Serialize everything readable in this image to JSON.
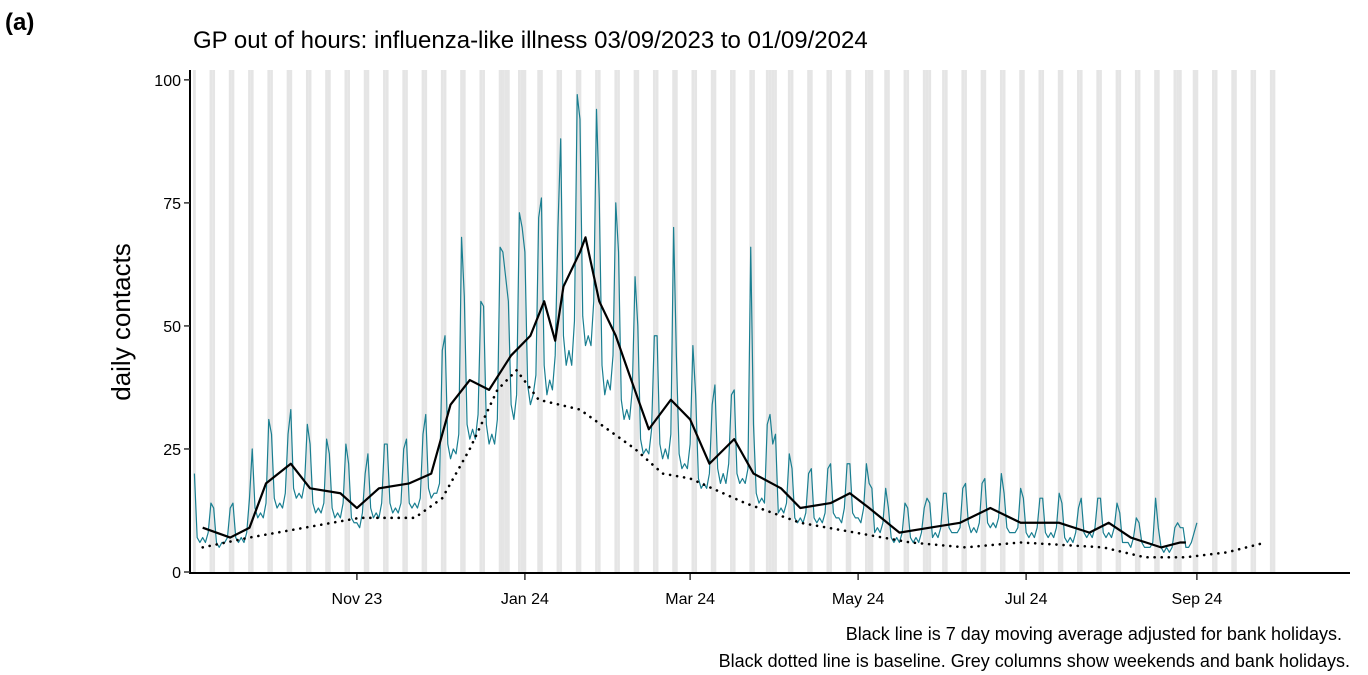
{
  "panel_label": "(a)",
  "chart_data": {
    "type": "line",
    "title": "GP out of hours: influenza-like illness 03/09/2023 to 01/09/2024",
    "y_label": "daily contacts",
    "notes": [
      "Black line is 7 day moving average adjusted for bank holidays.",
      "Black dotted line is baseline. Grey columns show weekends and bank holidays."
    ],
    "xlim": [
      -1.6,
      419.6
    ],
    "xticks": [
      {
        "value": 59,
        "label": "Nov 23"
      },
      {
        "value": 120,
        "label": "Jan 24"
      },
      {
        "value": 180,
        "label": "Mar 24"
      },
      {
        "value": 241,
        "label": "May 24"
      },
      {
        "value": 302,
        "label": "Jul 24"
      },
      {
        "value": 364,
        "label": "Sep 24"
      }
    ],
    "ylim": [
      0,
      102
    ],
    "yticks": [
      0,
      25,
      50,
      75,
      100
    ],
    "shaded_columns": {
      "color": "#e5e5e5",
      "x": [
        0,
        6,
        7,
        13,
        14,
        20,
        21,
        27,
        28,
        34,
        35,
        41,
        42,
        48,
        49,
        55,
        56,
        62,
        63,
        69,
        70,
        76,
        77,
        83,
        84,
        90,
        91,
        97,
        98,
        104,
        105,
        111,
        112,
        113,
        114,
        118,
        119,
        120,
        125,
        126,
        132,
        133,
        139,
        140,
        146,
        147,
        153,
        154,
        160,
        161,
        167,
        168,
        174,
        175,
        181,
        182,
        188,
        189,
        195,
        196,
        202,
        203,
        208,
        209,
        210,
        211,
        216,
        217,
        223,
        224,
        230,
        231,
        237,
        238,
        244,
        245,
        246,
        251,
        252,
        258,
        259,
        265,
        266,
        267,
        272,
        273,
        279,
        280,
        286,
        287,
        293,
        294,
        300,
        301,
        307,
        308,
        314,
        315,
        321,
        322,
        328,
        329,
        335,
        336,
        342,
        343,
        349,
        350,
        356,
        357,
        358,
        363,
        364,
        370,
        371,
        377,
        378,
        384,
        385,
        391,
        392
      ]
    },
    "series": [
      {
        "color": "#1a7f91",
        "width": 1.2,
        "linestyle": "solid",
        "x": [
          0,
          1,
          2,
          3,
          4,
          5,
          6,
          7,
          8,
          9,
          10,
          11,
          12,
          13,
          14,
          15,
          16,
          17,
          18,
          19,
          20,
          21,
          22,
          23,
          24,
          25,
          26,
          27,
          28,
          29,
          30,
          31,
          32,
          33,
          34,
          35,
          36,
          37,
          38,
          39,
          40,
          41,
          42,
          43,
          44,
          45,
          46,
          47,
          48,
          49,
          50,
          51,
          52,
          53,
          54,
          55,
          56,
          57,
          58,
          59,
          60,
          61,
          62,
          63,
          64,
          65,
          66,
          67,
          68,
          69,
          70,
          71,
          72,
          73,
          74,
          75,
          76,
          77,
          78,
          79,
          80,
          81,
          82,
          83,
          84,
          85,
          86,
          87,
          88,
          89,
          90,
          91,
          92,
          93,
          94,
          95,
          96,
          97,
          98,
          99,
          100,
          101,
          102,
          103,
          104,
          105,
          106,
          107,
          108,
          109,
          110,
          111,
          112,
          113,
          114,
          115,
          116,
          117,
          118,
          119,
          120,
          121,
          122,
          123,
          124,
          125,
          126,
          127,
          128,
          129,
          130,
          131,
          132,
          133,
          134,
          135,
          136,
          137,
          138,
          139,
          140,
          141,
          142,
          143,
          144,
          145,
          146,
          147,
          148,
          149,
          150,
          151,
          152,
          153,
          154,
          155,
          156,
          157,
          158,
          159,
          160,
          161,
          162,
          163,
          164,
          165,
          166,
          167,
          168,
          169,
          170,
          171,
          172,
          173,
          174,
          175,
          176,
          177,
          178,
          179,
          180,
          181,
          182,
          183,
          184,
          185,
          186,
          187,
          188,
          189,
          190,
          191,
          192,
          193,
          194,
          195,
          196,
          197,
          198,
          199,
          200,
          201,
          202,
          203,
          204,
          205,
          206,
          207,
          208,
          209,
          210,
          211,
          212,
          213,
          214,
          215,
          216,
          217,
          218,
          219,
          220,
          221,
          222,
          223,
          224,
          225,
          226,
          227,
          228,
          229,
          230,
          231,
          232,
          233,
          234,
          235,
          236,
          237,
          238,
          239,
          240,
          241,
          242,
          243,
          244,
          245,
          246,
          247,
          248,
          249,
          250,
          251,
          252,
          253,
          254,
          255,
          256,
          257,
          258,
          259,
          260,
          261,
          262,
          263,
          264,
          265,
          266,
          267,
          268,
          269,
          270,
          271,
          272,
          273,
          274,
          275,
          276,
          277,
          278,
          279,
          280,
          281,
          282,
          283,
          284,
          285,
          286,
          287,
          288,
          289,
          290,
          291,
          292,
          293,
          294,
          295,
          296,
          297,
          298,
          299,
          300,
          301,
          302,
          303,
          304,
          305,
          306,
          307,
          308,
          309,
          310,
          311,
          312,
          313,
          314,
          315,
          316,
          317,
          318,
          319,
          320,
          321,
          322,
          323,
          324,
          325,
          326,
          327,
          328,
          329,
          330,
          331,
          332,
          333,
          334,
          335,
          336,
          337,
          338,
          339,
          340,
          341,
          342,
          343,
          344,
          345,
          346,
          347,
          348,
          349,
          350,
          351,
          352,
          353,
          354,
          355,
          356,
          357,
          358,
          359,
          360,
          361,
          362,
          363,
          364
        ],
        "values": [
          20,
          7,
          6,
          7,
          6,
          8,
          14,
          13,
          6,
          5,
          6,
          6,
          7,
          13,
          14,
          7,
          6,
          7,
          6,
          8,
          15,
          25,
          13,
          11,
          12,
          11,
          14,
          31,
          28,
          15,
          13,
          14,
          13,
          16,
          28,
          33,
          17,
          15,
          16,
          15,
          18,
          30,
          26,
          14,
          12,
          13,
          12,
          14,
          27,
          24,
          13,
          11,
          12,
          11,
          14,
          26,
          22,
          11,
          10,
          10,
          9,
          12,
          20,
          24,
          13,
          11,
          12,
          11,
          14,
          26,
          26,
          14,
          12,
          13,
          12,
          14,
          25,
          27,
          14,
          13,
          14,
          13,
          15,
          28,
          32,
          17,
          15,
          16,
          16,
          18,
          45,
          48,
          26,
          23,
          25,
          24,
          28,
          68,
          56,
          30,
          27,
          29,
          27,
          32,
          55,
          54,
          30,
          26,
          28,
          26,
          31,
          66,
          65,
          60,
          55,
          34,
          31,
          36,
          73,
          70,
          65,
          38,
          34,
          36,
          40,
          72,
          76,
          42,
          36,
          39,
          37,
          44,
          70,
          88,
          48,
          42,
          45,
          42,
          51,
          97,
          92,
          52,
          46,
          48,
          46,
          55,
          94,
          76,
          42,
          36,
          39,
          37,
          44,
          75,
          65,
          35,
          31,
          33,
          31,
          37,
          60,
          50,
          27,
          24,
          25,
          24,
          29,
          48,
          48,
          26,
          23,
          25,
          23,
          28,
          70,
          44,
          24,
          21,
          22,
          21,
          26,
          46,
          36,
          19,
          17,
          18,
          17,
          20,
          34,
          38,
          21,
          18,
          20,
          18,
          22,
          36,
          37,
          20,
          18,
          19,
          18,
          21,
          66,
          30,
          16,
          14,
          15,
          14,
          30,
          32,
          26,
          28,
          12,
          13,
          12,
          14,
          24,
          21,
          11,
          10,
          11,
          10,
          12,
          20,
          21,
          11,
          10,
          11,
          10,
          12,
          21,
          22,
          12,
          11,
          11,
          10,
          13,
          22,
          22,
          12,
          11,
          11,
          10,
          13,
          22,
          18,
          17,
          8,
          9,
          8,
          10,
          17,
          13,
          7,
          6,
          7,
          6,
          8,
          14,
          13,
          7,
          6,
          7,
          6,
          8,
          13,
          15,
          14,
          7,
          8,
          7,
          9,
          16,
          16,
          9,
          8,
          8,
          8,
          9,
          17,
          18,
          10,
          8,
          9,
          8,
          10,
          18,
          19,
          10,
          9,
          10,
          9,
          11,
          20,
          16,
          9,
          8,
          8,
          8,
          9,
          17,
          15,
          8,
          7,
          8,
          7,
          9,
          15,
          15,
          8,
          7,
          8,
          7,
          9,
          16,
          14,
          7,
          6,
          7,
          6,
          8,
          13,
          15,
          8,
          7,
          8,
          7,
          9,
          15,
          15,
          8,
          7,
          8,
          7,
          9,
          14,
          12,
          6,
          6,
          6,
          5,
          7,
          11,
          10,
          6,
          5,
          5,
          5,
          6,
          15,
          9,
          5,
          4,
          5,
          4,
          5,
          9,
          10,
          9,
          9,
          5,
          5,
          6,
          8,
          10
        ]
      },
      {
        "color": "#000000",
        "width": 2.2,
        "linestyle": "solid",
        "x": [
          3,
          13,
          20,
          26,
          35,
          42,
          53,
          59,
          67,
          78,
          86,
          93,
          100,
          107,
          115,
          122,
          127,
          131,
          134,
          140,
          142,
          147,
          153,
          158,
          165,
          173,
          180,
          187,
          196,
          203,
          213,
          220,
          231,
          238,
          245,
          256,
          267,
          278,
          289,
          300,
          314,
          325,
          332,
          340,
          351,
          358,
          360
        ],
        "values": [
          9,
          7,
          9,
          18,
          22,
          17,
          16,
          13,
          17,
          18,
          20,
          34,
          39,
          37,
          44,
          48,
          55,
          47,
          58,
          65,
          68,
          55,
          48,
          40,
          29,
          35,
          31,
          22,
          27,
          20,
          17,
          13,
          14,
          16,
          13,
          8,
          9,
          10,
          13,
          10,
          10,
          8,
          10,
          7,
          5,
          6,
          6
        ]
      },
      {
        "color": "#000000",
        "width": 2.6,
        "linestyle": "dotted",
        "x": [
          3,
          20,
          40,
          60,
          80,
          90,
          100,
          110,
          117,
          125,
          140,
          160,
          170,
          180,
          200,
          220,
          240,
          260,
          280,
          300,
          330,
          345,
          360,
          375,
          389
        ],
        "values": [
          5,
          7,
          9,
          11,
          11,
          15,
          25,
          37,
          41,
          35,
          33,
          25,
          20,
          19,
          14,
          10,
          8,
          6,
          5,
          6,
          5,
          3,
          3,
          4,
          6
        ]
      }
    ]
  }
}
